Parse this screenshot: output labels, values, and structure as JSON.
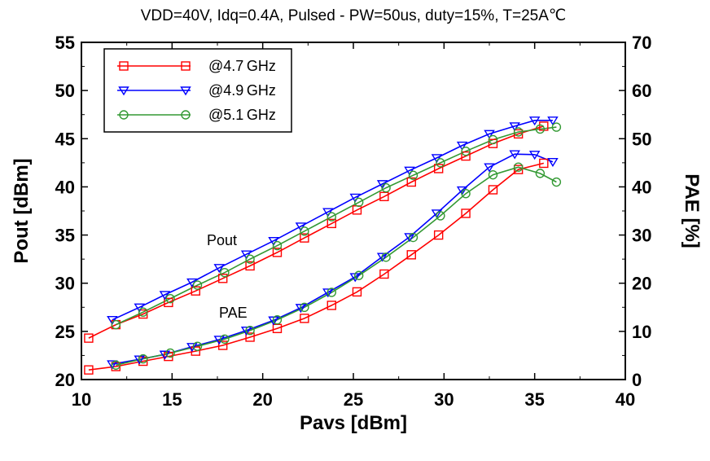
{
  "chart_data": {
    "type": "line",
    "title": "VDD=40V, Idq=0.4A, Pulsed - PW=50us, duty=15%, T=25A℃",
    "xlabel": "Pavs [dBm]",
    "ylabel": "Pout [dBm]",
    "y2label": "PAE [%]",
    "xlim": [
      10,
      40
    ],
    "ylim": [
      20,
      55
    ],
    "y2lim": [
      0,
      70
    ],
    "xticks": [
      "10",
      "15",
      "20",
      "25",
      "30",
      "35",
      "40"
    ],
    "yticks": [
      "20",
      "25",
      "30",
      "35",
      "40",
      "45",
      "50",
      "55"
    ],
    "y2ticks": [
      "0",
      "10",
      "20",
      "30",
      "40",
      "50",
      "60",
      "70"
    ],
    "grid": false,
    "legend_position": "top-left",
    "annotations": [
      {
        "text": "Pout",
        "x": 17.2,
        "y": 36.0
      },
      {
        "text": "PAE",
        "x": 18.3,
        "y": 26.4
      }
    ],
    "series": [
      {
        "name": "@4.7 GHz",
        "color": "#ff0000",
        "marker": "square",
        "axis": "left",
        "group": "Pout",
        "x": [
          10.4,
          11.9,
          13.4,
          14.8,
          16.3,
          17.8,
          19.3,
          20.8,
          22.3,
          23.8,
          25.2,
          26.7,
          28.2,
          29.7,
          31.2,
          32.7,
          34.1,
          35.5
        ],
        "y": [
          24.3,
          25.7,
          26.8,
          28.0,
          29.2,
          30.5,
          31.8,
          33.2,
          34.7,
          36.2,
          37.6,
          39.0,
          40.5,
          41.9,
          43.2,
          44.5,
          45.5,
          46.3
        ]
      },
      {
        "name": "@4.7 GHz",
        "color": "#ff0000",
        "marker": "square",
        "axis": "right",
        "group": "PAE",
        "x": [
          10.4,
          11.9,
          13.4,
          14.8,
          16.3,
          17.8,
          19.3,
          20.8,
          22.3,
          23.8,
          25.2,
          26.7,
          28.2,
          29.7,
          31.2,
          32.7,
          34.1,
          35.5
        ],
        "y": [
          2.0,
          2.7,
          3.8,
          4.8,
          5.9,
          7.1,
          8.8,
          10.6,
          12.7,
          15.4,
          18.2,
          21.9,
          25.9,
          30.0,
          34.5,
          39.4,
          43.6,
          44.9
        ]
      },
      {
        "name": "@4.9 GHz",
        "color": "#0000ff",
        "marker": "triangle-down",
        "axis": "left",
        "group": "Pout",
        "x": [
          11.7,
          13.2,
          14.6,
          16.1,
          17.6,
          19.1,
          20.6,
          22.1,
          23.6,
          25.1,
          26.6,
          28.1,
          29.6,
          31.0,
          32.5,
          33.9,
          35.0,
          36.0
        ],
        "y": [
          26.2,
          27.5,
          28.8,
          30.1,
          31.6,
          33.0,
          34.4,
          35.9,
          37.4,
          38.9,
          40.3,
          41.7,
          43.0,
          44.3,
          45.5,
          46.3,
          46.9,
          46.9
        ]
      },
      {
        "name": "@4.9 GHz",
        "color": "#0000ff",
        "marker": "triangle-down",
        "axis": "right",
        "group": "PAE",
        "x": [
          11.7,
          13.2,
          14.6,
          16.1,
          17.6,
          19.1,
          20.6,
          22.1,
          23.6,
          25.1,
          26.6,
          28.1,
          29.6,
          31.0,
          32.5,
          33.9,
          35.0,
          36.0
        ],
        "y": [
          3.2,
          4.2,
          5.2,
          6.8,
          8.3,
          10.2,
          12.3,
          14.9,
          18.1,
          21.3,
          25.5,
          29.6,
          34.5,
          39.3,
          44.1,
          46.8,
          46.7,
          45.2
        ]
      },
      {
        "name": "@5.1 GHz",
        "color": "#339933",
        "marker": "circle",
        "axis": "left",
        "group": "Pout",
        "x": [
          11.9,
          13.4,
          14.9,
          16.4,
          17.9,
          19.3,
          20.8,
          22.3,
          23.8,
          25.3,
          26.8,
          28.3,
          29.8,
          31.2,
          32.7,
          34.1,
          35.3,
          36.2
        ],
        "y": [
          25.7,
          27.0,
          28.4,
          29.8,
          31.1,
          32.5,
          33.9,
          35.4,
          36.9,
          38.4,
          39.9,
          41.2,
          42.5,
          43.7,
          44.9,
          45.7,
          46.0,
          46.2
        ]
      },
      {
        "name": "@5.1 GHz",
        "color": "#339933",
        "marker": "circle",
        "axis": "right",
        "group": "PAE",
        "x": [
          11.9,
          13.4,
          14.9,
          16.4,
          17.9,
          19.3,
          20.8,
          22.3,
          23.8,
          25.3,
          26.8,
          28.3,
          29.8,
          31.2,
          32.7,
          34.1,
          35.3,
          36.2
        ],
        "y": [
          3.0,
          4.3,
          5.5,
          6.9,
          8.4,
          10.2,
          12.4,
          15.0,
          18.1,
          21.6,
          25.4,
          29.5,
          34.0,
          38.6,
          42.5,
          44.1,
          42.8,
          41.0
        ]
      }
    ],
    "legend": [
      {
        "label": "@4.7 GHz",
        "color": "#ff0000",
        "marker": "square"
      },
      {
        "label": "@4.9 GHz",
        "color": "#0000ff",
        "marker": "triangle-down"
      },
      {
        "label": "@5.1 GHz",
        "color": "#339933",
        "marker": "circle"
      }
    ]
  }
}
